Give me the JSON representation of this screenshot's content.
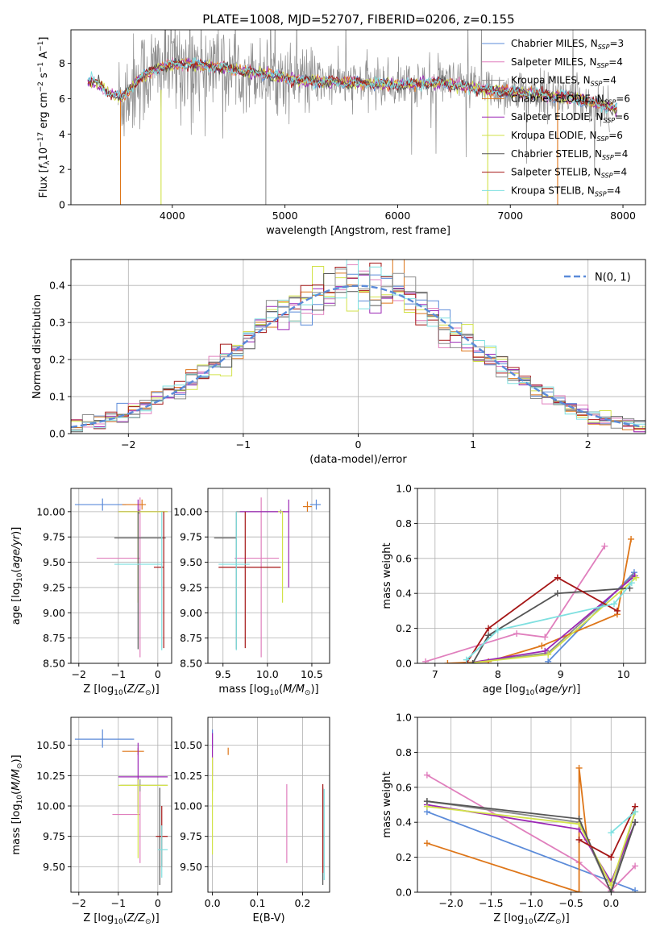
{
  "figure_title": "PLATE=1008, MJD=52707, FIBERID=0206, z=0.155",
  "colors": {
    "blue": "#5b8bd9",
    "pink": "#e07fbd",
    "gray": "#8c8c8c",
    "orange": "#de7619",
    "purple": "#9b27b5",
    "yellow": "#d2e24a",
    "dark": "#555555",
    "red": "#a51616",
    "cyan": "#7fe0e0"
  },
  "legend_entries": [
    {
      "label": "Chabrier MILES, N",
      "sub": "SSP",
      "tail": "=3",
      "color": "blue"
    },
    {
      "label": "Salpeter MILES, N",
      "sub": "SSP",
      "tail": "=4",
      "color": "pink"
    },
    {
      "label": "Kroupa MILES, N",
      "sub": "SSP",
      "tail": "=4",
      "color": "gray"
    },
    {
      "label": "Chabrier ELODIE, N",
      "sub": "SSP",
      "tail": "=6",
      "color": "orange"
    },
    {
      "label": "Salpeter ELODIE, N",
      "sub": "SSP",
      "tail": "=6",
      "color": "purple"
    },
    {
      "label": "Kroupa ELODIE, N",
      "sub": "SSP",
      "tail": "=6",
      "color": "yellow"
    },
    {
      "label": "Chabrier STELIB, N",
      "sub": "SSP",
      "tail": "=4",
      "color": "dark"
    },
    {
      "label": "Salpeter STELIB, N",
      "sub": "SSP",
      "tail": "=4",
      "color": "red"
    },
    {
      "label": "Kroupa STELIB, N",
      "sub": "SSP",
      "tail": "=4",
      "color": "cyan"
    }
  ],
  "chart_data": [
    {
      "id": "spectrum",
      "type": "line",
      "xlabel": "wavelength [Angstrom, rest frame]",
      "ylabel": "Flux [f_λ 10^-17 erg cm^-2 s^-1 A^-1]",
      "xlim": [
        3100,
        8200
      ],
      "ylim": [
        0,
        9.9
      ],
      "xticks": [
        4000,
        5000,
        6000,
        7000,
        8000
      ],
      "yticks": [
        0,
        2,
        4,
        6,
        8
      ],
      "grid": false,
      "data_trend": {
        "x": [
          3300,
          3450,
          3550,
          3700,
          3900,
          4100,
          4400,
          4800,
          5200,
          5600,
          6000,
          6400,
          6800,
          7200,
          7600,
          7950
        ],
        "y": [
          7.0,
          6.3,
          6.0,
          7.1,
          7.8,
          8.0,
          7.8,
          7.4,
          7.0,
          6.9,
          6.8,
          6.9,
          6.5,
          6.3,
          6.0,
          5.4
        ]
      },
      "legend_placement": "right"
    },
    {
      "id": "residuals",
      "type": "histogram",
      "xlabel": "(data-model)/error",
      "ylabel": "Normed distribution",
      "xlim": [
        -2.5,
        2.5
      ],
      "ylim": [
        0,
        0.47
      ],
      "xticks": [
        -2,
        -1,
        0,
        1,
        2
      ],
      "yticks": [
        0.0,
        0.1,
        0.2,
        0.3,
        0.4
      ],
      "grid": true,
      "bin_width": 0.1,
      "model_curve": "N(0,1)",
      "legend": [
        {
          "label": "N(0, 1)",
          "style": "dashed",
          "color": "#5b8bd9"
        }
      ],
      "legend_placement": "top-right"
    },
    {
      "id": "age_vs_Z",
      "type": "errorbar",
      "xlabel": "Z [log10(Z/Z⊙)]",
      "ylabel": "age [log10(age/yr)]",
      "xlim": [
        -2.2,
        0.35
      ],
      "ylim": [
        8.5,
        10.23
      ],
      "xticks": [
        -2,
        -1,
        0
      ],
      "yticks": [
        8.5,
        8.75,
        9.0,
        9.25,
        9.5,
        9.75,
        10.0
      ],
      "grid": true,
      "points": [
        {
          "series": "blue",
          "x": -1.4,
          "xerr": [
            0.7,
            0.6
          ],
          "y": 10.07,
          "yerr": [
            0.06,
            0.06
          ]
        },
        {
          "series": "pink",
          "x": -0.45,
          "xerr": [
            1.1,
            0.0
          ],
          "y": 9.54,
          "yerr": [
            0.98,
            0.6
          ]
        },
        {
          "series": "gray",
          "x": -0.47,
          "xerr": [
            0.5,
            0.7
          ],
          "y": 10.0,
          "yerr": [
            0.02,
            0.02
          ]
        },
        {
          "series": "orange",
          "x": -0.4,
          "xerr": [
            0.5,
            0.1
          ],
          "y": 10.07,
          "yerr": [
            0.05,
            0.05
          ]
        },
        {
          "series": "purple",
          "x": -0.5,
          "xerr": [
            0.5,
            0.75
          ],
          "y": 10.0,
          "yerr": [
            0.0,
            0.12
          ]
        },
        {
          "series": "yellow",
          "x": -0.5,
          "xerr": [
            0.5,
            0.75
          ],
          "y": 10.0,
          "yerr": [
            0.9,
            0.0
          ]
        },
        {
          "series": "dark",
          "x": -0.5,
          "xerr": [
            0.6,
            0.7
          ],
          "y": 9.74,
          "yerr": [
            1.1,
            0.26
          ]
        },
        {
          "series": "red",
          "x": 0.15,
          "xerr": [
            0.25,
            0.0
          ],
          "y": 9.45,
          "yerr": [
            0.8,
            0.55
          ]
        },
        {
          "series": "cyan",
          "x": 0.1,
          "xerr": [
            1.2,
            0.0
          ],
          "y": 9.48,
          "yerr": [
            0.85,
            0.52
          ]
        }
      ]
    },
    {
      "id": "age_vs_mass",
      "type": "errorbar",
      "xlabel": "mass [log10(M/M⊙)]",
      "ylabel": "",
      "xlim": [
        9.33,
        10.7
      ],
      "ylim": [
        8.5,
        10.23
      ],
      "xticks": [
        9.5,
        10.0,
        10.5
      ],
      "yticks": [
        8.5,
        8.75,
        9.0,
        9.25,
        9.5,
        9.75,
        10.0
      ],
      "grid": true,
      "points": [
        {
          "series": "blue",
          "x": 10.55,
          "xerr": [
            0.07,
            0.05
          ],
          "y": 10.07,
          "yerr": [
            0.05,
            0.05
          ]
        },
        {
          "series": "pink",
          "x": 9.93,
          "xerr": [
            0.3,
            0.2
          ],
          "y": 9.54,
          "yerr": [
            0.98,
            0.6
          ]
        },
        {
          "series": "gray",
          "x": 10.15,
          "xerr": [
            0.5,
            0.05
          ],
          "y": 10.0,
          "yerr": [
            0.02,
            0.02
          ]
        },
        {
          "series": "orange",
          "x": 10.45,
          "xerr": [
            0.05,
            0.05
          ],
          "y": 10.05,
          "yerr": [
            0.05,
            0.05
          ]
        },
        {
          "series": "purple",
          "x": 10.24,
          "xerr": [
            0.55,
            0.0
          ],
          "y": 10.0,
          "yerr": [
            0.75,
            0.12
          ]
        },
        {
          "series": "yellow",
          "x": 10.17,
          "xerr": [
            0.05,
            0.0
          ],
          "y": 10.0,
          "yerr": [
            0.9,
            0.0
          ]
        },
        {
          "series": "dark",
          "x": 9.65,
          "xerr": [
            0.25,
            0.0
          ],
          "y": 9.74,
          "yerr": [
            1.1,
            0.26
          ]
        },
        {
          "series": "red",
          "x": 9.75,
          "xerr": [
            0.3,
            0.4
          ],
          "y": 9.45,
          "yerr": [
            0.8,
            0.55
          ]
        },
        {
          "series": "cyan",
          "x": 9.65,
          "xerr": [
            0.2,
            0.15
          ],
          "y": 9.48,
          "yerr": [
            0.85,
            0.52
          ]
        }
      ]
    },
    {
      "id": "weight_vs_age",
      "type": "line",
      "xlabel": "age [log10(age/yr)]",
      "ylabel": "mass weight",
      "xlim": [
        6.72,
        10.35
      ],
      "ylim": [
        0,
        1.0
      ],
      "xticks": [
        7,
        8,
        9,
        10
      ],
      "yticks": [
        0.0,
        0.2,
        0.4,
        0.6,
        0.8,
        1.0
      ],
      "grid": true,
      "series": [
        {
          "name": "blue",
          "x": [
            8.8,
            10.17
          ],
          "y": [
            0.01,
            0.52
          ]
        },
        {
          "name": "pink",
          "x": [
            6.85,
            8.3,
            8.75,
            9.7
          ],
          "y": [
            0.01,
            0.17,
            0.15,
            0.67
          ]
        },
        {
          "name": "gray",
          "x": [
            7.5,
            8.8,
            10.15
          ],
          "y": [
            0.0,
            0.06,
            0.5
          ]
        },
        {
          "name": "orange",
          "x": [
            7.2,
            7.85,
            8.7,
            9.9,
            10.12
          ],
          "y": [
            0.0,
            0.01,
            0.1,
            0.28,
            0.71
          ]
        },
        {
          "name": "purple",
          "x": [
            7.5,
            8.75,
            10.18
          ],
          "y": [
            0.0,
            0.07,
            0.5
          ]
        },
        {
          "name": "yellow",
          "x": [
            7.5,
            8.8,
            10.2
          ],
          "y": [
            0.0,
            0.05,
            0.49
          ]
        },
        {
          "name": "dark",
          "x": [
            7.6,
            7.85,
            8.95,
            10.1
          ],
          "y": [
            0.0,
            0.16,
            0.4,
            0.43
          ]
        },
        {
          "name": "red",
          "x": [
            7.5,
            7.85,
            8.95,
            9.9
          ],
          "y": [
            0.0,
            0.2,
            0.49,
            0.3
          ]
        },
        {
          "name": "cyan",
          "x": [
            7.5,
            8.0,
            9.85,
            10.13
          ],
          "y": [
            0.02,
            0.19,
            0.34,
            0.46
          ]
        }
      ]
    },
    {
      "id": "mass_vs_Z",
      "type": "errorbar",
      "xlabel": "Z [log10(Z/Z⊙)]",
      "ylabel": "mass [log10(M/M⊙)]",
      "xlim": [
        -2.2,
        0.35
      ],
      "ylim": [
        9.29,
        10.73
      ],
      "xticks": [
        -2,
        -1,
        0
      ],
      "yticks": [
        9.5,
        9.75,
        10.0,
        10.25,
        10.5
      ],
      "grid": true,
      "points": [
        {
          "series": "blue",
          "x": -1.4,
          "xerr": [
            0.7,
            0.8
          ],
          "y": 10.55,
          "yerr": [
            0.07,
            0.08
          ]
        },
        {
          "series": "pink",
          "x": -0.45,
          "xerr": [
            0.7,
            0.0
          ],
          "y": 9.93,
          "yerr": [
            0.4,
            0.25
          ]
        },
        {
          "series": "gray",
          "x": -0.45,
          "xerr": [
            0.5,
            0.7
          ],
          "y": 10.17,
          "yerr": [
            0.05,
            0.05
          ]
        },
        {
          "series": "orange",
          "x": -0.5,
          "xerr": [
            0.4,
            0.15
          ],
          "y": 10.45,
          "yerr": [
            0.03,
            0.03
          ]
        },
        {
          "series": "purple",
          "x": -0.5,
          "xerr": [
            0.5,
            0.75
          ],
          "y": 10.24,
          "yerr": [
            0.3,
            0.28
          ]
        },
        {
          "series": "yellow",
          "x": -0.5,
          "xerr": [
            0.5,
            0.75
          ],
          "y": 10.17,
          "yerr": [
            0.6,
            0.05
          ]
        },
        {
          "series": "dark",
          "x": 0.05,
          "xerr": [
            0.0,
            0.0
          ],
          "y": 9.75,
          "yerr": [
            0.4,
            0.4
          ]
        },
        {
          "series": "red",
          "x": 0.1,
          "xerr": [
            0.15,
            0.15
          ],
          "y": 9.75,
          "yerr": [
            0.25,
            0.25
          ]
        },
        {
          "series": "cyan",
          "x": 0.1,
          "xerr": [
            0.1,
            0.15
          ],
          "y": 9.64,
          "yerr": [
            0.23,
            0.2
          ]
        }
      ]
    },
    {
      "id": "mass_vs_ebv",
      "type": "errorbar",
      "xlabel": "E(B-V)",
      "ylabel": "",
      "xlim": [
        -0.01,
        0.26
      ],
      "ylim": [
        9.29,
        10.73
      ],
      "xticks": [
        0.0,
        0.1,
        0.2
      ],
      "yticks": [
        9.5,
        9.75,
        10.0,
        10.25,
        10.5
      ],
      "grid": true,
      "points": [
        {
          "series": "blue",
          "x": 0.0,
          "xerr": [
            0,
            0
          ],
          "y": 10.55,
          "yerr": [
            0.07,
            0.08
          ]
        },
        {
          "series": "pink",
          "x": 0.165,
          "xerr": [
            0,
            0
          ],
          "y": 9.93,
          "yerr": [
            0.4,
            0.25
          ]
        },
        {
          "series": "gray",
          "x": 0.0,
          "xerr": [
            0,
            0
          ],
          "y": 10.17,
          "yerr": [
            0.05,
            0.05
          ]
        },
        {
          "series": "orange",
          "x": 0.035,
          "xerr": [
            0,
            0
          ],
          "y": 10.45,
          "yerr": [
            0.03,
            0.03
          ]
        },
        {
          "series": "purple",
          "x": 0.0,
          "xerr": [
            0,
            0
          ],
          "y": 10.45,
          "yerr": [
            0.2,
            0.15
          ]
        },
        {
          "series": "yellow",
          "x": 0.0,
          "xerr": [
            0,
            0
          ],
          "y": 10.0,
          "yerr": [
            0.4,
            0.4
          ]
        },
        {
          "series": "dark",
          "x": 0.245,
          "xerr": [
            0,
            0
          ],
          "y": 9.75,
          "yerr": [
            0.4,
            0.4
          ]
        },
        {
          "series": "red",
          "x": 0.245,
          "xerr": [
            0,
            0
          ],
          "y": 9.8,
          "yerr": [
            0.35,
            0.38
          ]
        },
        {
          "series": "cyan",
          "x": 0.248,
          "xerr": [
            0,
            0
          ],
          "y": 9.77,
          "yerr": [
            0.38,
            0.37
          ]
        }
      ]
    },
    {
      "id": "weight_vs_Z",
      "type": "line",
      "xlabel": "Z [log10(Z/Z⊙)]",
      "ylabel": "mass weight",
      "xlim": [
        -2.42,
        0.43
      ],
      "ylim": [
        0,
        1.0
      ],
      "xticks": [
        -2.0,
        -1.5,
        -1.0,
        -0.5,
        0.0
      ],
      "yticks": [
        0.0,
        0.2,
        0.4,
        0.6,
        0.8,
        1.0
      ],
      "grid": true,
      "series": [
        {
          "name": "blue",
          "x": [
            -2.3,
            0.3
          ],
          "y": [
            0.46,
            0.01
          ]
        },
        {
          "name": "pink",
          "x": [
            -2.3,
            -0.4,
            0.0,
            0.3
          ],
          "y": [
            0.67,
            0.17,
            0.01,
            0.15
          ]
        },
        {
          "name": "gray",
          "x": [
            -2.3,
            -0.4,
            0.0,
            0.3
          ],
          "y": [
            0.52,
            0.4,
            0.0,
            0.46
          ]
        },
        {
          "name": "orange",
          "x": [
            -2.3,
            -0.4,
            -0.4,
            -0.3,
            0.0
          ],
          "y": [
            0.28,
            0.0,
            0.71,
            0.3,
            0.04
          ]
        },
        {
          "name": "purple",
          "x": [
            -2.3,
            -0.4,
            0.0,
            0.3
          ],
          "y": [
            0.5,
            0.36,
            0.06,
            0.4
          ]
        },
        {
          "name": "yellow",
          "x": [
            -2.3,
            -0.4,
            0.0,
            0.3
          ],
          "y": [
            0.49,
            0.39,
            0.04,
            0.46
          ]
        },
        {
          "name": "dark",
          "x": [
            -2.3,
            -0.4,
            0.0,
            0.3
          ],
          "y": [
            0.52,
            0.42,
            0.0,
            0.4
          ]
        },
        {
          "name": "red",
          "x": [
            -0.4,
            0.0,
            0.3
          ],
          "y": [
            0.3,
            0.2,
            0.49
          ]
        },
        {
          "name": "cyan",
          "x": [
            0.0,
            0.3
          ],
          "y": [
            0.34,
            0.46
          ]
        }
      ]
    }
  ]
}
